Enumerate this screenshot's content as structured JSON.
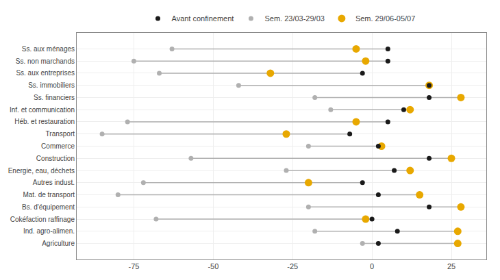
{
  "chart_data": {
    "type": "dot",
    "orientation": "horizontal",
    "categories": [
      "Ss. aux ménages",
      "Ss. non marchands",
      "Ss. aux entreprises",
      "Ss. immobiliers",
      "Ss. financiers",
      "Inf. et communication",
      "Héb. et restauration",
      "Transport",
      "Commerce",
      "Construction",
      "Energie, eau, déchets",
      "Autres indust.",
      "Mat. de transport",
      "Bs. d'équipement",
      "Cokéfaction raffinage",
      "Ind. agro-alimen.",
      "Agriculture"
    ],
    "series": [
      {
        "name": "Avant confinement",
        "color": "#1a1a1a",
        "values": [
          5,
          5,
          -3,
          18,
          18,
          10,
          5,
          -7,
          2,
          18,
          7,
          -3,
          2,
          18,
          0,
          8,
          2
        ]
      },
      {
        "name": "Sem. 23/03-29/03",
        "color": "#b0b0b0",
        "values": [
          -63,
          -75,
          -67,
          -42,
          -18,
          -13,
          -77,
          -85,
          -20,
          -57,
          -27,
          -72,
          -80,
          -20,
          -68,
          -18,
          -3
        ]
      },
      {
        "name": "Sem. 29/06-05/07",
        "color": "#e8a800",
        "values": [
          -5,
          -2,
          -32,
          18,
          28,
          12,
          -5,
          -27,
          3,
          25,
          12,
          -20,
          15,
          28,
          -2,
          27,
          27
        ]
      }
    ],
    "xlim": [
      -93,
      36
    ],
    "xticks": [
      -75,
      -50,
      -25,
      0,
      25
    ],
    "grid": true,
    "legend": "top"
  }
}
